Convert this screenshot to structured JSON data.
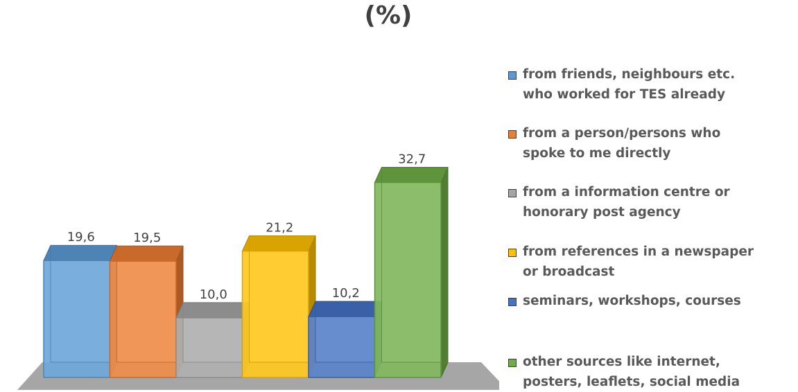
{
  "chart_data": {
    "type": "bar",
    "title": "(%)",
    "categories": [
      "from friends, neighbours etc.\nwho worked for TES already",
      "from a person/persons who\nspoke to me directly",
      "from a information centre or\nhonorary post agency",
      "from references in a newspaper\nor broadcast",
      "seminars, workshops, courses",
      "other sources like internet,\nposters, leaflets, social media"
    ],
    "values": [
      19.6,
      19.5,
      10.0,
      21.2,
      10.2,
      32.7
    ],
    "value_labels": [
      "19,6",
      "19,5",
      "10,0",
      "21,2",
      "10,2",
      "32,7"
    ],
    "colors": [
      "#5b9bd5",
      "#ed7d31",
      "#a5a5a5",
      "#ffc000",
      "#4472c4",
      "#70ad47"
    ],
    "style": "3d-bar",
    "grid": false,
    "legend": "right"
  }
}
